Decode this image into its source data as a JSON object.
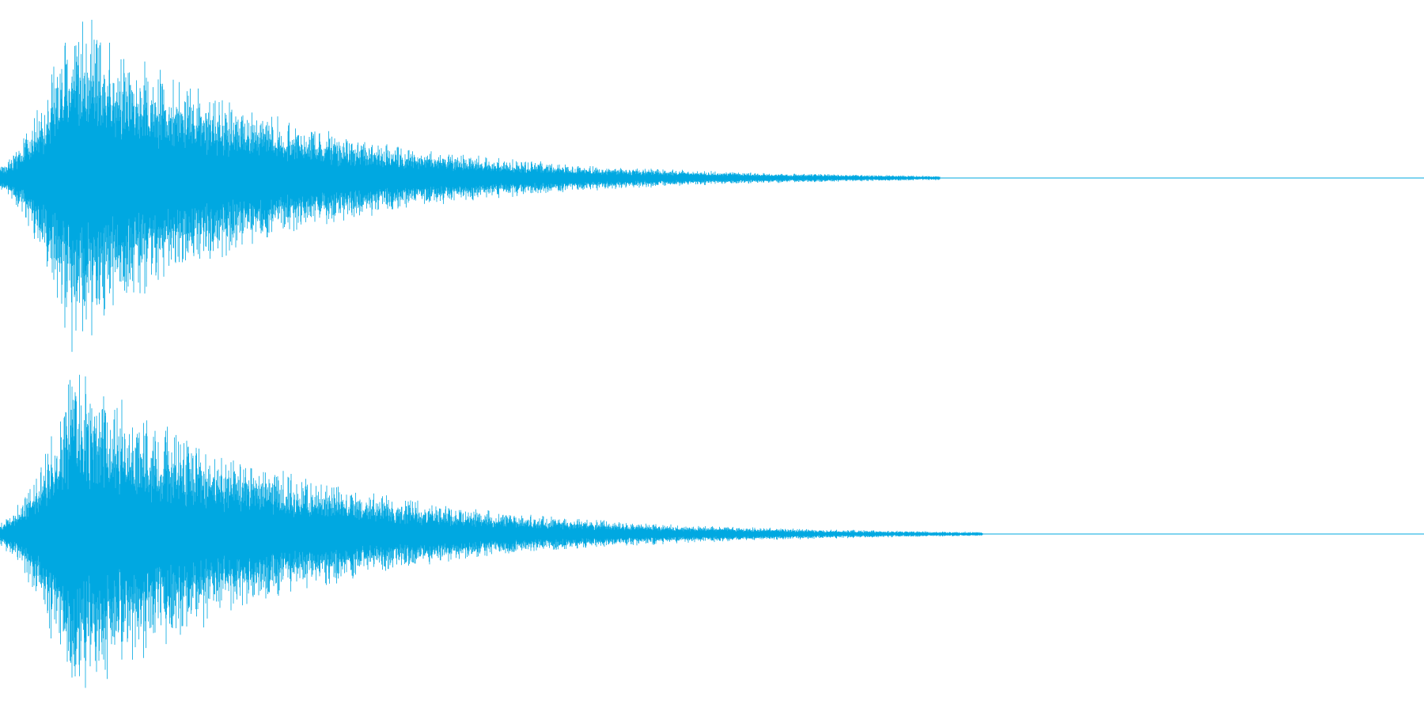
{
  "waveform": {
    "channel_count": 2,
    "color": "#00A8E1",
    "background": "#FFFFFF",
    "channels": [
      {
        "name": "channel-1",
        "attack_start": 0.0,
        "attack_peak": 0.05,
        "decay_end": 0.66,
        "peak_amplitude": 1.0,
        "residual_tail_end": 0.66
      },
      {
        "name": "channel-2",
        "attack_start": 0.0,
        "attack_peak": 0.05,
        "decay_end": 0.69,
        "peak_amplitude": 1.0,
        "residual_tail_end": 0.69
      }
    ]
  }
}
